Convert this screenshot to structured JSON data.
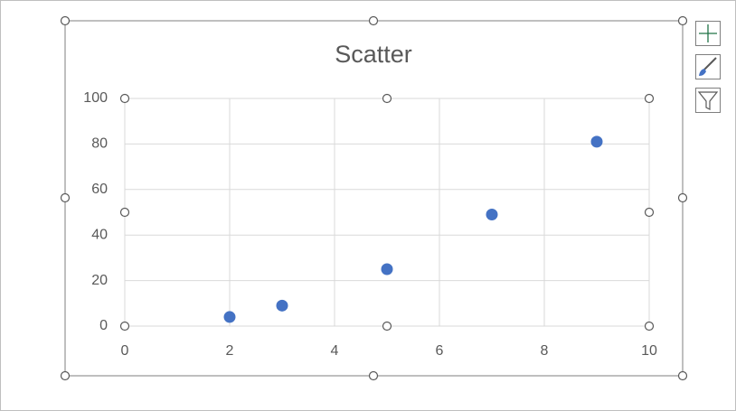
{
  "chart_data": {
    "type": "scatter",
    "title": "Scatter",
    "x": [
      2,
      3,
      5,
      7,
      9
    ],
    "values": [
      4,
      9,
      25,
      49,
      81
    ],
    "color": "#4472c4",
    "xlim": [
      0,
      10
    ],
    "xticks": [
      0,
      2,
      4,
      6,
      8,
      10
    ],
    "ylim": [
      0,
      100
    ],
    "yticks": [
      0,
      20,
      40,
      60,
      80,
      100
    ],
    "grid": true
  }
}
